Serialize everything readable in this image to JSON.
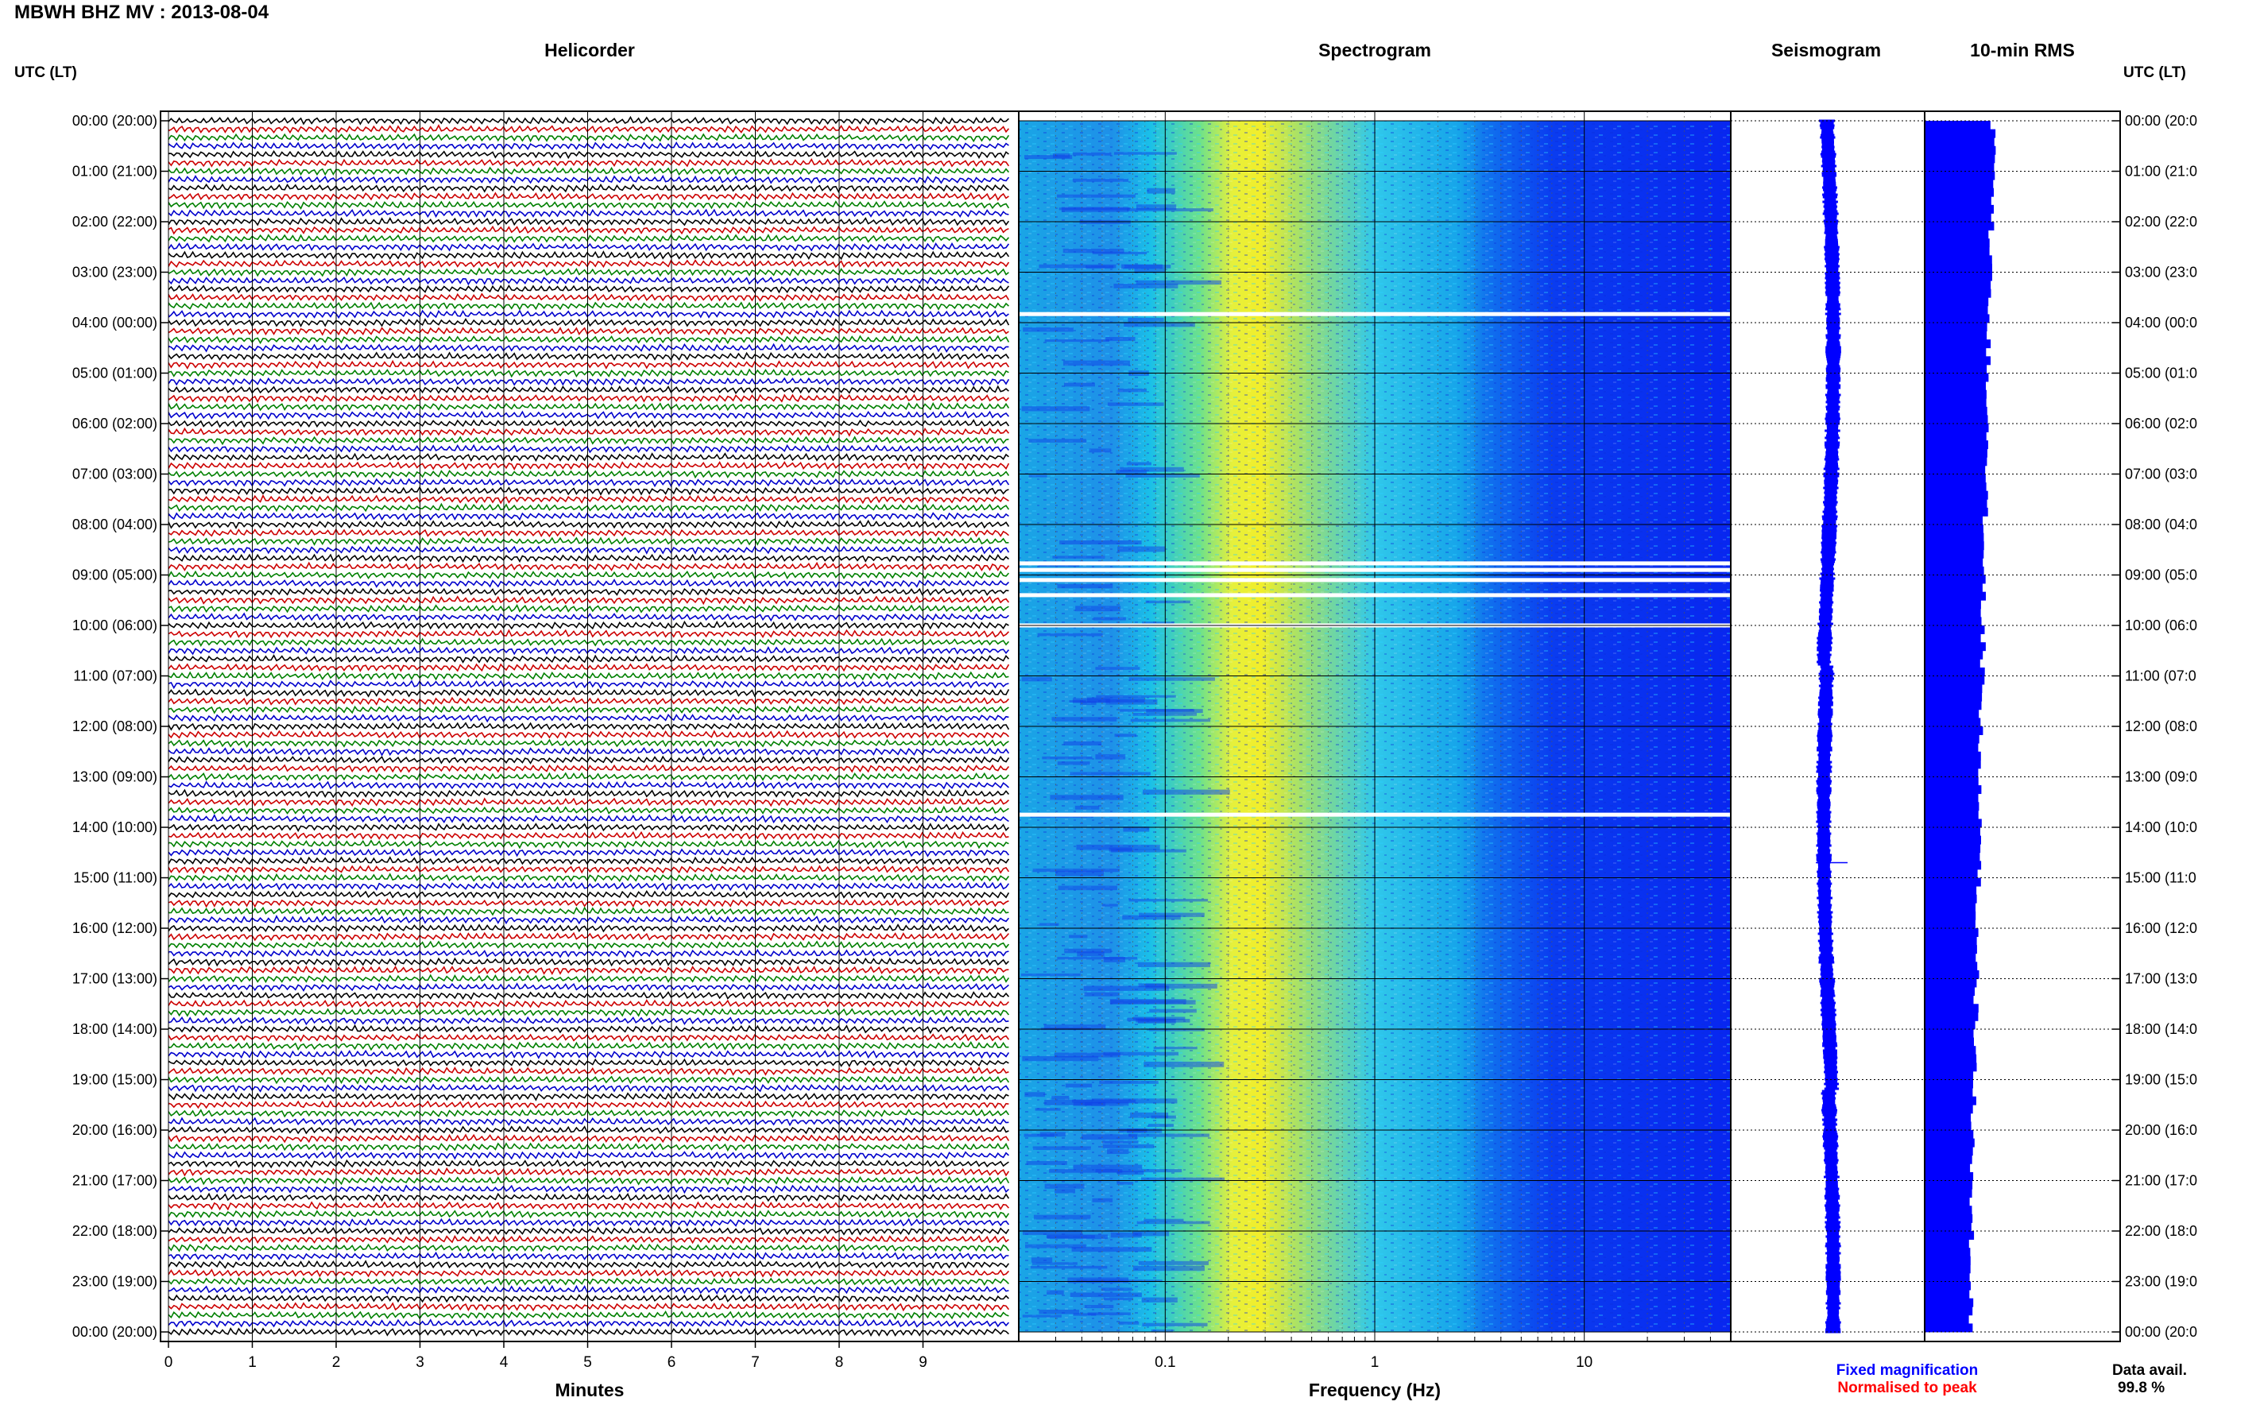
{
  "header": {
    "title": "MBWH BHZ MV : 2013-08-04",
    "utc_label": "UTC (LT)"
  },
  "panels": {
    "helicorder": "Helicorder",
    "spectrogram": "Spectrogram",
    "seismogram": "Seismogram",
    "rms": "10-min RMS"
  },
  "axes": {
    "minutes_label": "Minutes",
    "frequency_label": "Frequency (Hz)"
  },
  "legend": {
    "fixed": "Fixed magnification",
    "normalised": "Normalised to peak",
    "fixed_color": "#0000ff",
    "normalised_color": "#ff0000"
  },
  "data_avail": {
    "label": "Data avail.",
    "value": "99.8 %"
  },
  "chart_data": [
    {
      "type": "line",
      "name": "Helicorder",
      "x_ticks": [
        "0",
        "1",
        "2",
        "3",
        "4",
        "5",
        "6",
        "7",
        "8",
        "9"
      ],
      "xlim": [
        0,
        10
      ],
      "xlabel": "Minutes",
      "y_ticks_left": [
        "00:00 (20:00)",
        "01:00 (21:00)",
        "02:00 (22:00)",
        "03:00 (23:00)",
        "04:00 (00:00)",
        "05:00 (01:00)",
        "06:00 (02:00)",
        "07:00 (03:00)",
        "08:00 (04:00)",
        "09:00 (05:00)",
        "10:00 (06:00)",
        "11:00 (07:00)",
        "12:00 (08:00)",
        "13:00 (09:00)",
        "14:00 (10:00)",
        "15:00 (11:00)",
        "16:00 (12:00)",
        "17:00 (13:00)",
        "18:00 (14:00)",
        "19:00 (15:00)",
        "20:00 (16:00)",
        "21:00 (17:00)",
        "22:00 (18:00)",
        "23:00 (19:00)",
        "00:00 (20:00)"
      ],
      "y_ticks_right": [
        "00:00 (20:0",
        "01:00 (21:0",
        "02:00 (22:0",
        "03:00 (23:0",
        "04:00 (00:0",
        "05:00 (01:0",
        "06:00 (02:0",
        "07:00 (03:0",
        "08:00 (04:0",
        "09:00 (05:0",
        "10:00 (06:0",
        "11:00 (07:0",
        "12:00 (08:0",
        "13:00 (09:0",
        "14:00 (10:0",
        "15:00 (11:0",
        "16:00 (12:0",
        "17:00 (13:0",
        "18:00 (14:0",
        "19:00 (15:0",
        "20:00 (16:0",
        "21:00 (17:0",
        "22:00 (18:0",
        "23:00 (19:0",
        "00:00 (20:0"
      ],
      "traces_per_hour": 6,
      "trace_colors": [
        "#000000",
        "#cc0000",
        "#008000",
        "#0000cc"
      ]
    },
    {
      "type": "heatmap",
      "name": "Spectrogram",
      "x_scale": "log",
      "xlim": [
        0.02,
        50
      ],
      "x_ticks": [
        {
          "value": 0.1,
          "label": "0.1"
        },
        {
          "value": 1,
          "label": "1"
        },
        {
          "value": 10,
          "label": "10"
        }
      ],
      "xlabel": "Frequency (Hz)",
      "colormap": [
        "#0000ff",
        "#00c0ff",
        "#ffff00"
      ],
      "peak_frequency_hz": 0.2,
      "gaps_hours": [
        3.83,
        8.77,
        8.9,
        9.1,
        9.4,
        10.0,
        13.75
      ]
    },
    {
      "type": "line",
      "name": "Seismogram",
      "line_color": "#0000ff"
    },
    {
      "type": "bar",
      "name": "10-min RMS",
      "bar_color": "#0000ff",
      "bin_minutes": 10,
      "relative_level_range": [
        0.68,
        1.0
      ]
    }
  ]
}
